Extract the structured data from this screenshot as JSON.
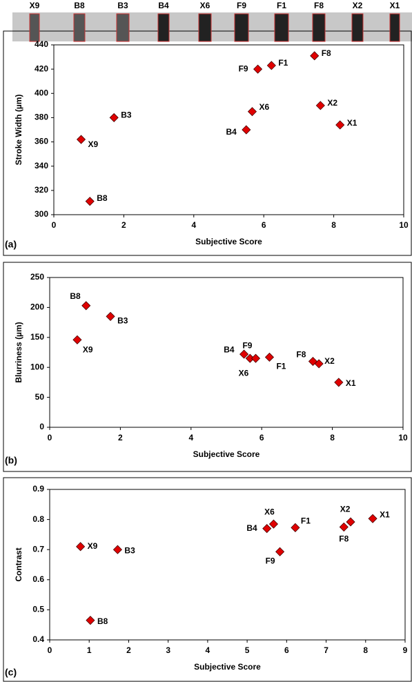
{
  "strip_labels": [
    "X9",
    "B8",
    "B3",
    "B4",
    "X6",
    "F9",
    "F1",
    "F8",
    "X2",
    "X1"
  ],
  "chart_data": [
    {
      "type": "scatter",
      "panel_label": "(a)",
      "x_label": "Subjective Score",
      "y_label": "Stroke Width (µm)",
      "point_labels": [
        "X9",
        "B8",
        "B3",
        "B4",
        "X6",
        "F9",
        "F1",
        "F8",
        "X2",
        "X1"
      ],
      "x": [
        0.78,
        1.03,
        1.72,
        5.5,
        5.67,
        5.83,
        6.22,
        7.45,
        7.62,
        8.18
      ],
      "values": [
        362,
        311,
        380,
        370,
        385,
        420,
        423,
        431,
        390,
        374
      ],
      "color": "#e00000",
      "xlim": [
        0,
        10
      ],
      "xticks": [
        0,
        2,
        4,
        6,
        8,
        10
      ],
      "ylim": [
        300,
        440
      ],
      "yticks": [
        300,
        320,
        340,
        360,
        380,
        400,
        420,
        440
      ]
    },
    {
      "type": "scatter",
      "panel_label": "(b)",
      "x_label": "Subjective Score",
      "y_label": "Blurriness (µm)",
      "point_labels": [
        "X9",
        "B8",
        "B3",
        "B4",
        "X6",
        "F9",
        "F1",
        "F8",
        "X2",
        "X1"
      ],
      "x": [
        0.78,
        1.03,
        1.72,
        5.5,
        5.67,
        5.83,
        6.22,
        7.45,
        7.62,
        8.18
      ],
      "values": [
        146,
        203,
        185,
        122,
        115,
        115,
        117,
        110,
        106,
        75
      ],
      "color": "#e00000",
      "xlim": [
        0,
        10
      ],
      "xticks": [
        0,
        2,
        4,
        6,
        8,
        10
      ],
      "ylim": [
        0,
        250
      ],
      "yticks": [
        0,
        50,
        100,
        150,
        200,
        250
      ]
    },
    {
      "type": "scatter",
      "panel_label": "(c)",
      "x_label": "Subjective Score",
      "y_label": "Contrast",
      "point_labels": [
        "X9",
        "B8",
        "B3",
        "B4",
        "X6",
        "F9",
        "F1",
        "F8",
        "X2",
        "X1"
      ],
      "x": [
        0.78,
        1.03,
        1.72,
        5.5,
        5.67,
        5.83,
        6.22,
        7.45,
        7.62,
        8.18
      ],
      "values": [
        0.71,
        0.465,
        0.7,
        0.77,
        0.785,
        0.693,
        0.773,
        0.775,
        0.792,
        0.803
      ],
      "color": "#e00000",
      "xlim": [
        0,
        9
      ],
      "xticks": [
        0,
        1,
        2,
        3,
        4,
        5,
        6,
        7,
        8,
        9
      ],
      "ylim": [
        0.4,
        0.9
      ],
      "yticks": [
        0.4,
        0.5,
        0.6,
        0.7,
        0.8,
        0.9
      ]
    }
  ]
}
